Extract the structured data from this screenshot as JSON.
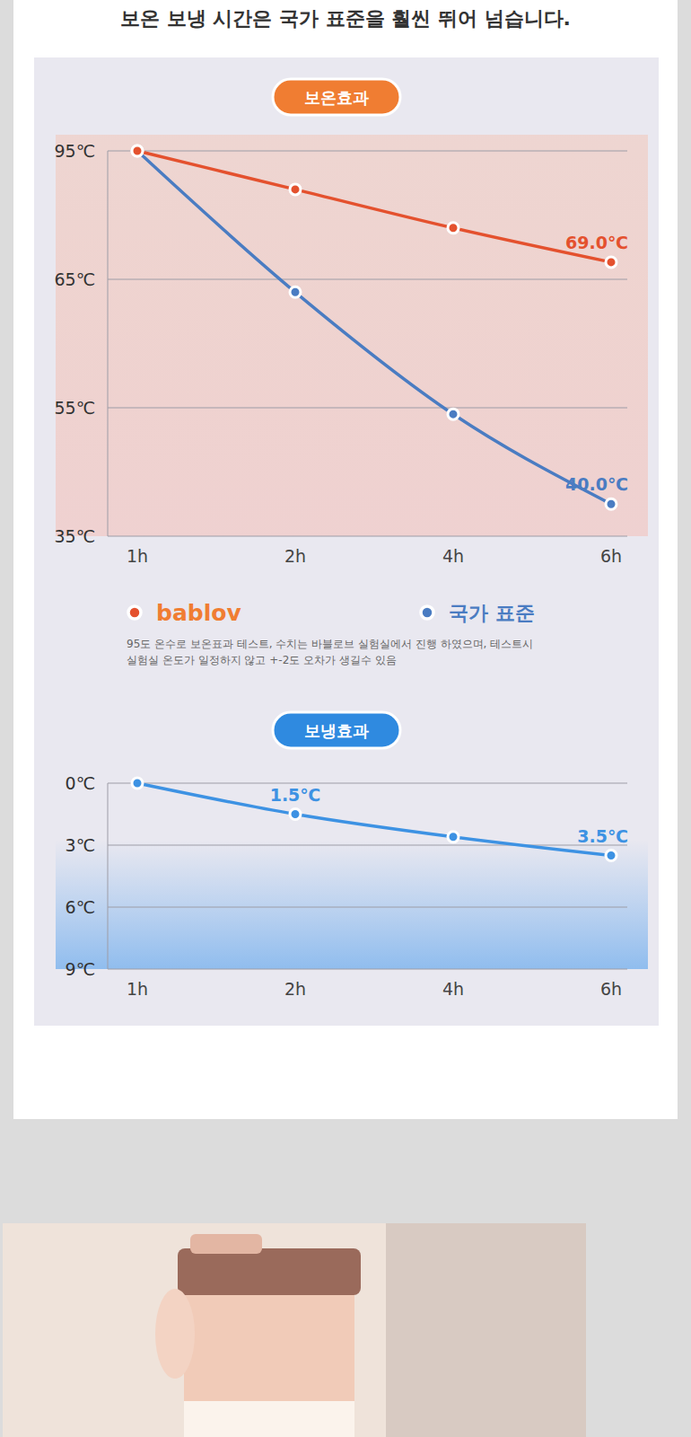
{
  "header": {
    "text": "보온 보냉 시간은 국가 표준을 훨씬 뛰어 넘습니다."
  },
  "chart_data": [
    {
      "type": "line",
      "title": "보온효과",
      "categories": [
        "1h",
        "2h",
        "4h",
        "6h"
      ],
      "series": [
        {
          "name": "bablov",
          "color": "#e4512e",
          "values": [
            95,
            86,
            77,
            69.0
          ],
          "value_labels": [
            null,
            null,
            null,
            "69.0℃"
          ]
        },
        {
          "name": "국가 표준",
          "color": "#4a7cc2",
          "values": [
            95,
            64,
            54,
            40.0
          ],
          "value_labels": [
            null,
            null,
            null,
            "40.0℃"
          ]
        }
      ],
      "ylim": [
        35,
        95
      ],
      "yticks": [
        {
          "value": 35,
          "label": "35℃"
        },
        {
          "value": 55,
          "label": "55℃"
        },
        {
          "value": 65,
          "label": "65℃"
        },
        {
          "value": 95,
          "label": "95℃"
        }
      ],
      "grid": true,
      "marker": "circle",
      "data_labels": true,
      "legend": "bottom",
      "note": [
        "95도 온수로 보온표과 테스트, 수치는 바블로브 실험실에서 진행 하였으며, 테스트시",
        "실험실 온도가 일정하지 않고 +-2도 오차가 생길수 있음"
      ]
    },
    {
      "type": "line",
      "title": "보냉효과",
      "categories": [
        "1h",
        "2h",
        "4h",
        "6h"
      ],
      "values": [
        0,
        1.5,
        2.6,
        3.5
      ],
      "value_labels": [
        null,
        "1.5℃",
        null,
        "3.5℃"
      ],
      "color": "#3d92e3",
      "ylim": [
        9,
        0
      ],
      "yticks": [
        {
          "value": 9,
          "label": "9℃"
        },
        {
          "value": 6,
          "label": "6℃"
        },
        {
          "value": 3,
          "label": "3℃"
        },
        {
          "value": 0,
          "label": "0℃"
        }
      ],
      "grid": true,
      "marker": "circle",
      "data_labels": true
    }
  ]
}
